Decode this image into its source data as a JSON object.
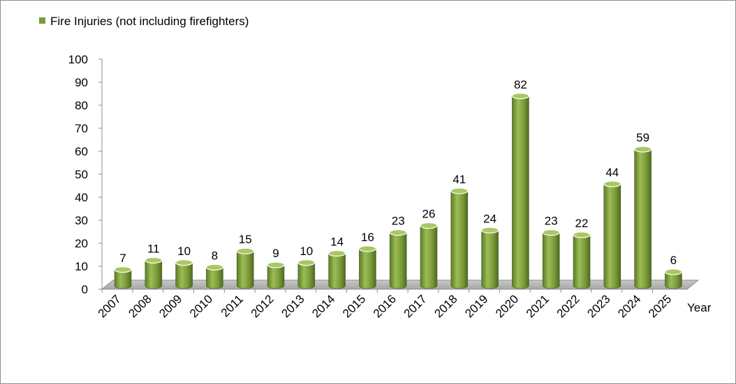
{
  "chart_data": {
    "type": "bar",
    "categories": [
      "2007",
      "2008",
      "2009",
      "2010",
      "2011",
      "2012",
      "2013",
      "2014",
      "2015",
      "2016",
      "2017",
      "2018",
      "2019",
      "2020",
      "2021",
      "2022",
      "2023",
      "2024",
      "2025"
    ],
    "series": [
      {
        "name": "Fire Injuries (not including firefighters)",
        "values": [
          7,
          11,
          10,
          8,
          15,
          9,
          10,
          14,
          16,
          23,
          26,
          41,
          24,
          82,
          23,
          22,
          44,
          59,
          6
        ],
        "color": "#7a9a3a"
      }
    ],
    "xlabel": "Year",
    "ylabel": "",
    "ylim": [
      0,
      100
    ],
    "yticks": [
      0,
      10,
      20,
      30,
      40,
      50,
      60,
      70,
      80,
      90,
      100
    ],
    "legend_position": "top-left",
    "data_labels": true,
    "grid": false,
    "style": "3d-cylinder"
  }
}
